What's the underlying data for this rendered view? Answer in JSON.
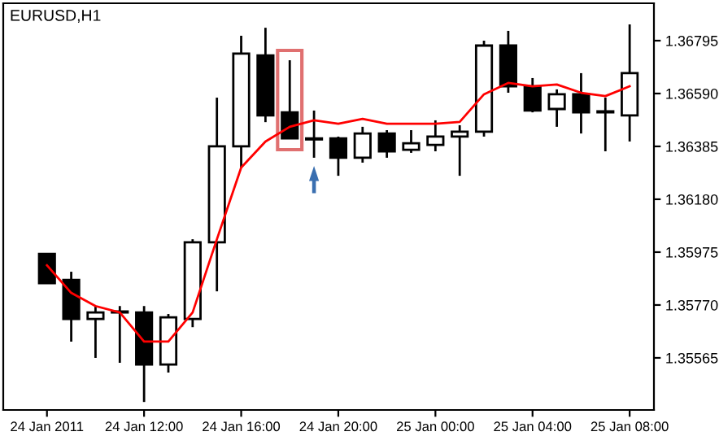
{
  "chart_data": {
    "type": "candlestick",
    "title": "EURUSD,H1",
    "categories": [
      "24 Jan 2011",
      null,
      null,
      null,
      "24 Jan 12:00",
      null,
      null,
      null,
      "24 Jan 16:00",
      null,
      null,
      null,
      "24 Jan 20:00",
      null,
      null,
      null,
      "25 Jan 00:00",
      null,
      null,
      null,
      "25 Jan 04:00",
      null,
      null,
      null,
      "25 Jan 08:00"
    ],
    "ohlc": [
      [
        1.35968,
        1.35968,
        1.35855,
        1.35855
      ],
      [
        1.35867,
        1.35899,
        1.35628,
        1.35716
      ],
      [
        1.35716,
        1.35766,
        1.35565,
        1.35741
      ],
      [
        1.35741,
        1.35766,
        1.35546,
        1.35745
      ],
      [
        1.35741,
        1.35766,
        1.35394,
        1.35539
      ],
      [
        1.35539,
        1.35735,
        1.35508,
        1.35722
      ],
      [
        1.35716,
        1.36025,
        1.35684,
        1.36013
      ],
      [
        1.36013,
        1.36574,
        1.35823,
        1.36385
      ],
      [
        1.36385,
        1.36814,
        1.36303,
        1.36745
      ],
      [
        1.36738,
        1.36845,
        1.36479,
        1.36505
      ],
      [
        1.36517,
        1.36719,
        1.36416,
        1.36416
      ],
      [
        1.36416,
        1.36524,
        1.36341,
        1.36412
      ],
      [
        1.36416,
        1.36423,
        1.36271,
        1.36341
      ],
      [
        1.36341,
        1.36461,
        1.36322,
        1.36435
      ],
      [
        1.36435,
        1.36448,
        1.36341,
        1.36366
      ],
      [
        1.36372,
        1.36448,
        1.3636,
        1.36397
      ],
      [
        1.36391,
        1.36486,
        1.36366,
        1.36423
      ],
      [
        1.36423,
        1.36467,
        1.36271,
        1.36442
      ],
      [
        1.36442,
        1.36795,
        1.36423,
        1.36776
      ],
      [
        1.36776,
        1.36833,
        1.36593,
        1.36618
      ],
      [
        1.36618,
        1.3665,
        1.36517,
        1.36524
      ],
      [
        1.3653,
        1.36606,
        1.36461,
        1.36587
      ],
      [
        1.36587,
        1.36669,
        1.36435,
        1.36517
      ],
      [
        1.36517,
        1.36574,
        1.36366,
        1.36521
      ],
      [
        1.36505,
        1.36858,
        1.36404,
        1.36669
      ]
    ],
    "series": [
      {
        "type": "line",
        "color": "#ff0000",
        "values": [
          1.35924,
          1.35817,
          1.35766,
          1.35741,
          1.35628,
          1.35628,
          1.35741,
          1.36025,
          1.36303,
          1.36404,
          1.36461,
          1.36486,
          1.36473,
          1.36492,
          1.36473,
          1.36473,
          1.36473,
          1.3648,
          1.36587,
          1.36631,
          1.36618,
          1.36625,
          1.36593,
          1.3658,
          1.36618
        ]
      }
    ],
    "ylim": [
      1.35363,
      1.3694
    ],
    "yticks": [
      {
        "value": 1.35565,
        "label": "1.35565"
      },
      {
        "value": 1.3577,
        "label": "1.35770"
      },
      {
        "value": 1.35975,
        "label": "1.35975"
      },
      {
        "value": 1.3618,
        "label": "1.36180"
      },
      {
        "value": 1.36385,
        "label": "1.36385"
      },
      {
        "value": 1.3659,
        "label": "1.36590"
      },
      {
        "value": 1.36795,
        "label": "1.36795"
      }
    ],
    "grid": false,
    "legend": false
  }
}
